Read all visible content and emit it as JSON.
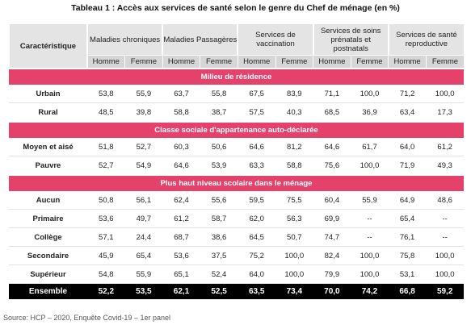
{
  "title": "Tableau 1 : Accès aux services de santé selon le genre du Chef de ménage (en %)",
  "table": {
    "label_header": "Caractéristique",
    "groups": [
      "Maladies chroniques",
      "Maladies Passagères",
      "Services de vaccination",
      "Services de soins prénatals et postnatals",
      "Services de santé reproductive"
    ],
    "subheaders": [
      "Homme",
      "Femme"
    ],
    "sections": [
      {
        "title": "Milieu de résidence",
        "rows": [
          {
            "label": "Urbain",
            "values": [
              "53,8",
              "55,9",
              "63,7",
              "55,8",
              "67,5",
              "83,9",
              "71,1",
              "100,0",
              "71,2",
              "100,0"
            ]
          },
          {
            "label": "Rural",
            "values": [
              "48,5",
              "39,8",
              "58,8",
              "38,7",
              "57,5",
              "40,3",
              "68,5",
              "36,9",
              "63,4",
              "17,3"
            ]
          }
        ]
      },
      {
        "title": "Classe sociale d'appartenance auto-déclarée",
        "rows": [
          {
            "label": "Moyen et aisé",
            "values": [
              "51,8",
              "52,7",
              "60,3",
              "50,6",
              "64,6",
              "81,2",
              "64,6",
              "61,7",
              "64,0",
              "61,2"
            ]
          },
          {
            "label": "Pauvre",
            "values": [
              "52,7",
              "54,9",
              "64,6",
              "53,9",
              "63,3",
              "58,8",
              "75,6",
              "100,0",
              "71,9",
              "49,3"
            ]
          }
        ]
      },
      {
        "title": "Plus haut niveau scolaire dans le ménage",
        "rows": [
          {
            "label": "Aucun",
            "values": [
              "50,8",
              "56,1",
              "62,4",
              "55,6",
              "59,5",
              "75,5",
              "60,4",
              "55,9",
              "64,9",
              "48,6"
            ]
          },
          {
            "label": "Primaire",
            "values": [
              "53,6",
              "49,7",
              "61,2",
              "58,7",
              "62,0",
              "56,3",
              "69,9",
              "--",
              "65,4",
              "--"
            ]
          },
          {
            "label": "Collège",
            "values": [
              "57,1",
              "24,4",
              "68,7",
              "38,6",
              "64,5",
              "50,7",
              "74,7",
              "--",
              "76,1",
              "--"
            ]
          },
          {
            "label": "Secondaire",
            "values": [
              "45,9",
              "65,4",
              "53,6",
              "37,5",
              "75,2",
              "100,0",
              "82,4",
              "100,0",
              "75,8",
              "100,0"
            ]
          },
          {
            "label": "Supérieur",
            "values": [
              "54,8",
              "55,9",
              "65,1",
              "52,4",
              "64,0",
              "100,0",
              "79,9",
              "100,0",
              "53,1",
              "100,0"
            ]
          }
        ]
      }
    ],
    "total": {
      "label": "Ensemble",
      "values": [
        "52,2",
        "53,5",
        "62,1",
        "52,5",
        "63,5",
        "73,4",
        "70,0",
        "74,2",
        "66,8",
        "59,2"
      ]
    }
  },
  "source": "Source: HCP – 2020, Enquête Covid-19 – 1er panel"
}
